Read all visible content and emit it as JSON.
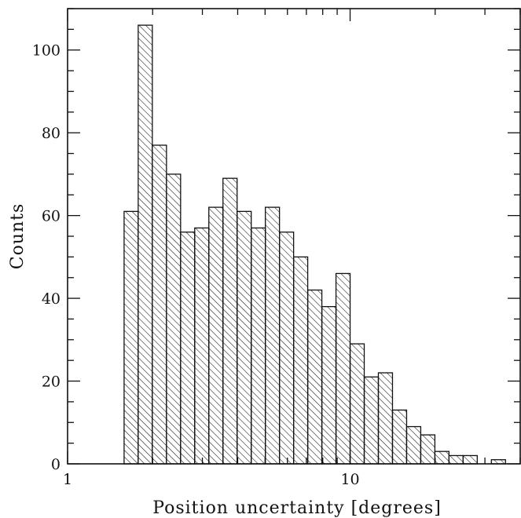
{
  "chart_data": {
    "type": "bar",
    "title": "",
    "xlabel": "Position uncertainty [degrees]",
    "ylabel": "Counts",
    "x_scale": "log",
    "xlim": [
      1,
      40
    ],
    "ylim": [
      0,
      110
    ],
    "x_tick_labels": [
      "1",
      "10"
    ],
    "y_tick_labels": [
      "0",
      "20",
      "40",
      "60",
      "80",
      "100"
    ],
    "bin_edges": [
      1.585,
      1.778,
      1.995,
      2.239,
      2.512,
      2.818,
      3.162,
      3.548,
      3.981,
      4.467,
      5.012,
      5.623,
      6.31,
      7.079,
      7.943,
      8.913,
      10.0,
      11.22,
      12.589,
      14.125,
      15.849,
      17.783,
      19.953,
      22.387,
      25.119,
      28.184,
      31.623,
      35.481
    ],
    "values": [
      61,
      106,
      77,
      70,
      56,
      57,
      62,
      69,
      61,
      57,
      62,
      56,
      50,
      42,
      38,
      46,
      29,
      21,
      22,
      13,
      9,
      7,
      3,
      2,
      2,
      0,
      1
    ],
    "grid": false,
    "bar_fill": "diagonal-hatch",
    "color": "#000000"
  }
}
